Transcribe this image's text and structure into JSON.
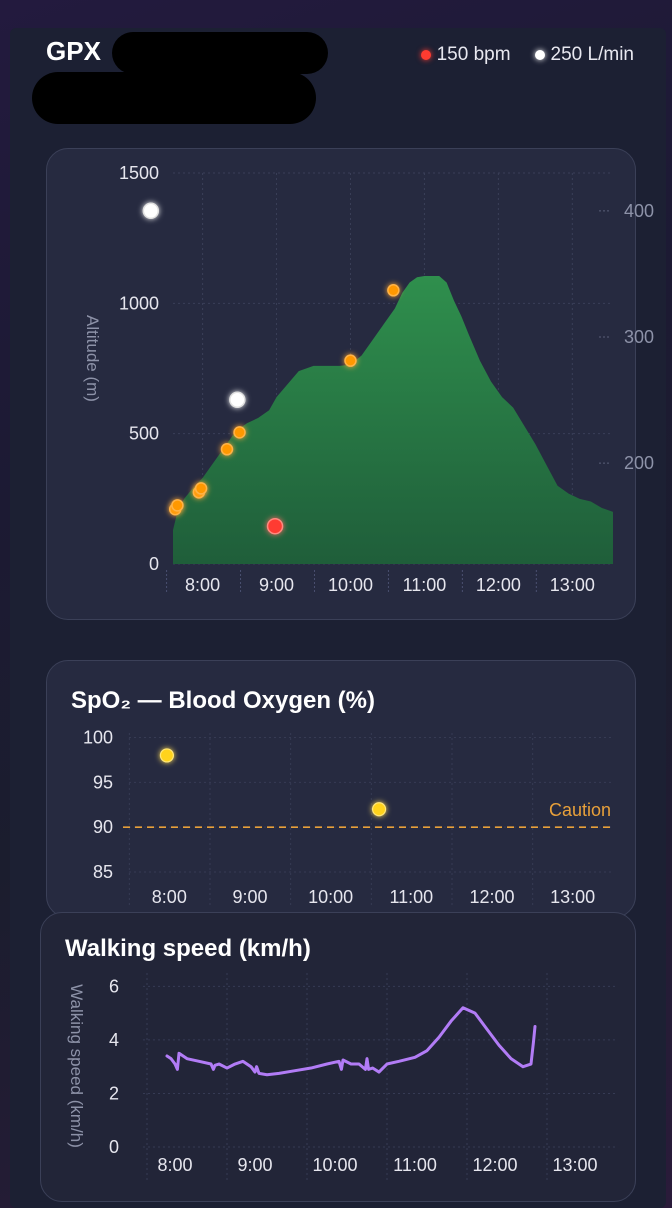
{
  "header": {
    "title": "GPX",
    "legend": [
      {
        "label": "150 bpm",
        "color": "#ff3b30"
      },
      {
        "label": "250 L/min",
        "color": "#ffffff"
      }
    ]
  },
  "charts": {
    "altitude": {
      "ylabel": "Altitude (m)"
    },
    "spo2": {
      "title": "SpO₂ — Blood Oxygen (%)",
      "caution_label": "Caution"
    },
    "speed": {
      "title": "Walking speed (km/h)",
      "ylabel": "Walking speed (km/h)"
    }
  },
  "chart_data": [
    {
      "type": "area",
      "ylabel": "Altitude (m)",
      "xticks": [
        "8:00",
        "9:00",
        "10:00",
        "11:00",
        "12:00",
        "13:00"
      ],
      "xlim_hours": [
        7.6,
        13.55
      ],
      "ylim": [
        0,
        1500
      ],
      "yticks": [
        0,
        500,
        1000,
        1500
      ],
      "y2ticks": [
        200,
        300,
        400
      ],
      "y2lim": [
        120,
        430
      ],
      "area_color": "#2e8a4a",
      "altitude_series": {
        "x": [
          7.6,
          7.66,
          7.75,
          7.85,
          8.0,
          8.15,
          8.3,
          8.45,
          8.6,
          8.75,
          8.9,
          9.0,
          9.15,
          9.3,
          9.5,
          9.7,
          9.85,
          10.0,
          10.15,
          10.3,
          10.45,
          10.6,
          10.7,
          10.8,
          10.9,
          11.0,
          11.1,
          11.2,
          11.3,
          11.4,
          11.5,
          11.6,
          11.75,
          11.9,
          12.05,
          12.2,
          12.35,
          12.5,
          12.65,
          12.8,
          12.95,
          13.1,
          13.25,
          13.4,
          13.55
        ],
        "y": [
          130,
          200,
          250,
          285,
          330,
          390,
          450,
          510,
          540,
          560,
          590,
          640,
          690,
          740,
          760,
          760,
          760,
          765,
          800,
          860,
          920,
          980,
          1040,
          1080,
          1100,
          1105,
          1105,
          1105,
          1080,
          1010,
          950,
          880,
          780,
          700,
          640,
          600,
          530,
          460,
          380,
          300,
          270,
          250,
          240,
          215,
          200
        ]
      },
      "markers": [
        {
          "x": 7.63,
          "y": 210,
          "color": "#ff9800",
          "kind": "orange"
        },
        {
          "x": 7.66,
          "y": 225,
          "color": "#ff9800",
          "kind": "orange"
        },
        {
          "x": 7.95,
          "y": 275,
          "color": "#ff9800",
          "kind": "orange"
        },
        {
          "x": 7.98,
          "y": 290,
          "color": "#ff9800",
          "kind": "orange"
        },
        {
          "x": 8.33,
          "y": 440,
          "color": "#ff9800",
          "kind": "orange"
        },
        {
          "x": 8.5,
          "y": 505,
          "color": "#ff9800",
          "kind": "orange"
        },
        {
          "x": 10.0,
          "y": 780,
          "color": "#ff9800",
          "kind": "orange"
        },
        {
          "x": 10.58,
          "y": 1050,
          "color": "#ff9800",
          "kind": "orange"
        },
        {
          "x": 8.98,
          "y": 145,
          "color": "#ff3b30",
          "kind": "red"
        },
        {
          "x": 7.3,
          "y": 1355,
          "color": "#ffffff",
          "kind": "white"
        },
        {
          "x": 8.47,
          "y": 630,
          "color": "#ffffff",
          "kind": "white"
        }
      ]
    },
    {
      "type": "scatter",
      "title": "SpO₂ — Blood Oxygen (%)",
      "xticks": [
        "8:00",
        "9:00",
        "10:00",
        "11:00",
        "12:00",
        "13:00"
      ],
      "xlim_hours": [
        7.5,
        13.5
      ],
      "ylim": [
        84,
        100.5
      ],
      "yticks": [
        85,
        90,
        95,
        100
      ],
      "x": [
        7.97,
        10.6
      ],
      "y": [
        98,
        92
      ],
      "point_color": "#ffd31a",
      "threshold": {
        "y": 90,
        "label": "Caution",
        "color": "#e8a03a"
      }
    },
    {
      "type": "line",
      "title": "Walking speed (km/h)",
      "ylabel": "Walking speed (km/h)",
      "xticks": [
        "8:00",
        "9:00",
        "10:00",
        "11:00",
        "12:00",
        "13:00"
      ],
      "xlim_hours": [
        7.6,
        13.5
      ],
      "ylim": [
        0,
        6.5
      ],
      "yticks": [
        0,
        2,
        4,
        6
      ],
      "line_color": "#b27cf6",
      "x": [
        7.9,
        7.95,
        8.0,
        8.03,
        8.05,
        8.15,
        8.3,
        8.45,
        8.48,
        8.5,
        8.55,
        8.65,
        8.75,
        8.85,
        8.95,
        9.0,
        9.02,
        9.05,
        9.15,
        9.3,
        9.5,
        9.7,
        9.9,
        10.05,
        10.08,
        10.1,
        10.2,
        10.3,
        10.38,
        10.4,
        10.42,
        10.47,
        10.55,
        10.65,
        10.8,
        11.0,
        11.15,
        11.3,
        11.45,
        11.6,
        11.75,
        11.9,
        12.05,
        12.2,
        12.35,
        12.45,
        12.48,
        12.5
      ],
      "y": [
        3.4,
        3.3,
        3.1,
        2.9,
        3.5,
        3.3,
        3.2,
        3.1,
        2.9,
        3.05,
        3.1,
        2.95,
        3.1,
        3.2,
        3.0,
        2.8,
        3.0,
        2.75,
        2.7,
        2.75,
        2.85,
        2.95,
        3.1,
        3.2,
        2.9,
        3.25,
        3.1,
        3.1,
        2.9,
        3.3,
        2.9,
        2.95,
        2.8,
        3.1,
        3.2,
        3.35,
        3.6,
        4.1,
        4.7,
        5.2,
        5.0,
        4.4,
        3.8,
        3.3,
        3.0,
        3.1,
        3.9,
        4.5
      ]
    }
  ]
}
